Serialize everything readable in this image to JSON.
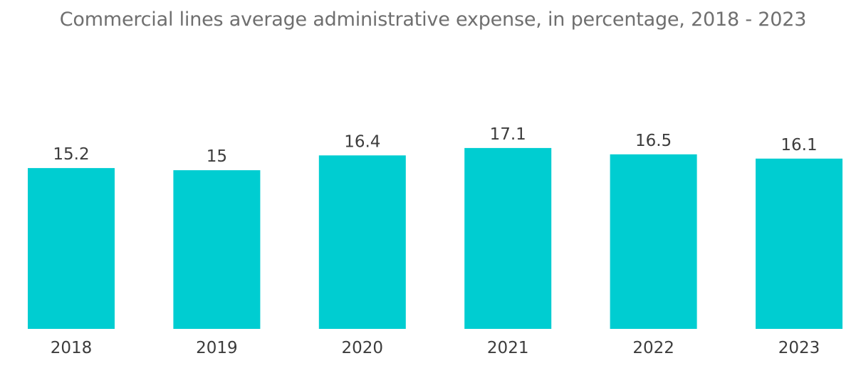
{
  "chart_data": {
    "type": "bar",
    "title": "Commercial lines average administrative expense, in percentage, 2018 - 2023",
    "categories": [
      "2018",
      "2019",
      "2020",
      "2021",
      "2022",
      "2023"
    ],
    "values": [
      15.2,
      15,
      16.4,
      17.1,
      16.5,
      16.1
    ],
    "value_labels": [
      "15.2",
      "15",
      "16.4",
      "17.1",
      "16.5",
      "16.1"
    ],
    "xlabel": "",
    "ylabel": "",
    "ylim": [
      0,
      17.1
    ],
    "grid": false,
    "legend": "none",
    "colors": {
      "bar": "#00CDD1",
      "title": "#6f6f6f",
      "text": "#3c3c3c"
    }
  }
}
